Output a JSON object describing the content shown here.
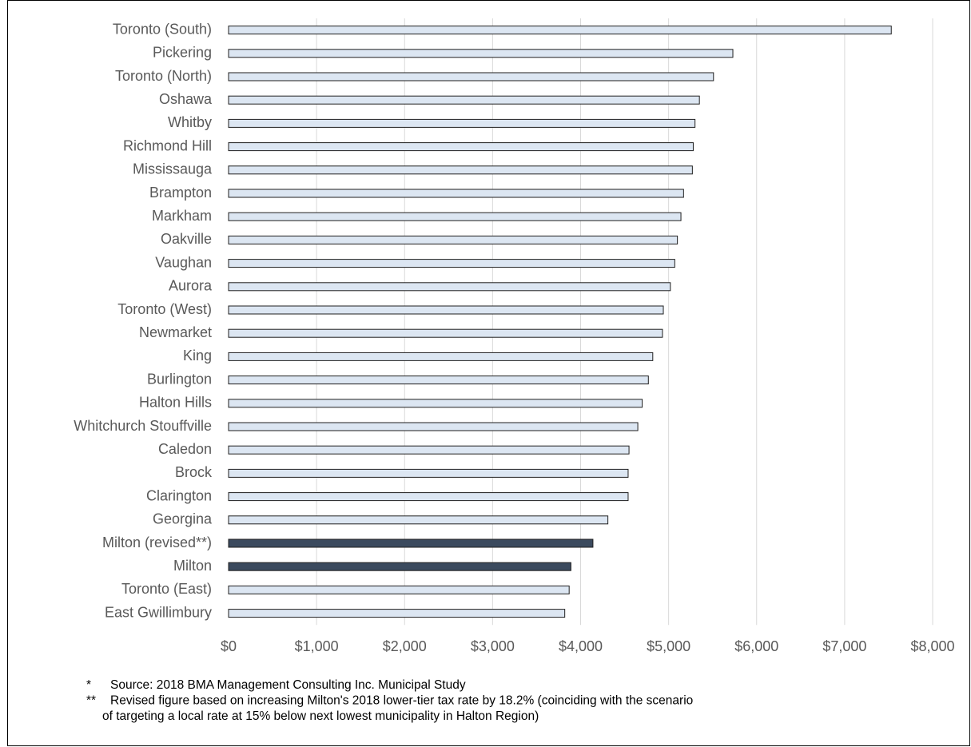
{
  "chart_data": {
    "type": "barh",
    "categories": [
      "Toronto (South)",
      "Pickering",
      "Toronto (North)",
      "Oshawa",
      "Whitby",
      "Richmond Hill",
      "Mississauga",
      "Brampton",
      "Markham",
      "Oakville",
      "Vaughan",
      "Aurora",
      "Toronto (West)",
      "Newmarket",
      "King",
      "Burlington",
      "Halton Hills",
      "Whitchurch Stouffville",
      "Caledon",
      "Brock",
      "Clarington",
      "Georgina",
      "Milton (revised**)",
      "Milton",
      "Toronto (East)",
      "East Gwillimbury"
    ],
    "values": [
      7530,
      5730,
      5510,
      5350,
      5300,
      5280,
      5270,
      5170,
      5140,
      5100,
      5070,
      5020,
      4940,
      4930,
      4820,
      4770,
      4700,
      4650,
      4550,
      4540,
      4540,
      4310,
      4140,
      3890,
      3870,
      3820
    ],
    "colors": [
      "#dce6f2",
      "#dce6f2",
      "#dce6f2",
      "#dce6f2",
      "#dce6f2",
      "#dce6f2",
      "#dce6f2",
      "#dce6f2",
      "#dce6f2",
      "#dce6f2",
      "#dce6f2",
      "#dce6f2",
      "#dce6f2",
      "#dce6f2",
      "#dce6f2",
      "#dce6f2",
      "#dce6f2",
      "#dce6f2",
      "#dce6f2",
      "#dce6f2",
      "#dce6f2",
      "#dce6f2",
      "#3b4a5e",
      "#3b4a5e",
      "#dce6f2",
      "#dce6f2"
    ],
    "xlim": [
      0,
      8000
    ],
    "xticks": [
      {
        "value": 0,
        "label": "$0"
      },
      {
        "value": 1000,
        "label": "$1,000"
      },
      {
        "value": 2000,
        "label": "$2,000"
      },
      {
        "value": 3000,
        "label": "$3,000"
      },
      {
        "value": 4000,
        "label": "$4,000"
      },
      {
        "value": 5000,
        "label": "$5,000"
      },
      {
        "value": 6000,
        "label": "$6,000"
      },
      {
        "value": 7000,
        "label": "$7,000"
      },
      {
        "value": 8000,
        "label": "$8,000"
      }
    ],
    "grid": true,
    "notes": [
      {
        "marker": "*",
        "lines": [
          "Source:  2018 BMA Management Consulting Inc. Municipal Study"
        ]
      },
      {
        "marker": "**",
        "lines": [
          "Revised figure based on increasing Milton's 2018 lower-tier tax rate by 18.2% (coinciding with the scenario",
          "of targeting a local rate at 15% below next lowest municipality in Halton Region)"
        ]
      }
    ]
  }
}
